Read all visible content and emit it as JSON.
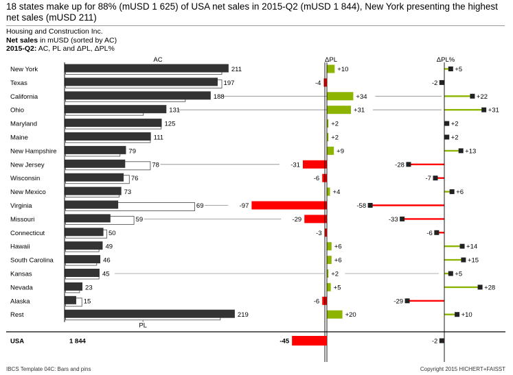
{
  "header": {
    "headline": "18 states make up for 88% (mUSD 1 625) of USA net sales in 2015-Q2 (mUSD 1 844), New York presenting the highest net sales (mUSD 211)",
    "company": "Housing and Construction Inc.",
    "measure_bold": "Net sales",
    "measure_rest": " in mUSD (sorted by AC)",
    "period_bold": "2015-Q2:",
    "period_rest": " AC, PL and ΔPL, ΔPL%"
  },
  "footer": {
    "left": "IBCS Template 04C: Bars and pins",
    "right": "Copyright 2015 HICHERT+FAISST"
  },
  "colors": {
    "actual": "#333333",
    "plan_outline": "#555555",
    "positive": "#8cb400",
    "negative": "#ff0000",
    "axis": "#000000",
    "marker": "#222222"
  },
  "chart_data": {
    "type": "bar",
    "title": "Net sales in mUSD (sorted by AC)",
    "column_headers": {
      "ac": "AC",
      "dpl": "ΔPL",
      "dpl_pct": "ΔPL%",
      "plan_legend": "PL"
    },
    "total": {
      "label": "USA",
      "ac": 1844,
      "ac_label": "1 844",
      "dpl": -45,
      "dpl_label": "-45",
      "dpl_pct": -2,
      "dpl_pct_label": "-2"
    },
    "rows": [
      {
        "category": "New York",
        "ac": 211,
        "pl": 201,
        "dpl": 10,
        "dpl_label": "+10",
        "dpl_pct": 5,
        "dpl_pct_label": "+5"
      },
      {
        "category": "Texas",
        "ac": 197,
        "pl": 201,
        "dpl": -4,
        "dpl_label": "-4",
        "dpl_pct": -2,
        "dpl_pct_label": "-2"
      },
      {
        "category": "California",
        "ac": 188,
        "pl": 154,
        "dpl": 34,
        "dpl_label": "+34",
        "dpl_pct": 22,
        "dpl_pct_label": "+22"
      },
      {
        "category": "Ohio",
        "ac": 131,
        "pl": 100,
        "dpl": 31,
        "dpl_label": "+31",
        "dpl_pct": 31,
        "dpl_pct_label": "+31"
      },
      {
        "category": "Maryland",
        "ac": 125,
        "pl": 123,
        "dpl": 2,
        "dpl_label": "+2",
        "dpl_pct": 2,
        "dpl_pct_label": "+2"
      },
      {
        "category": "Maine",
        "ac": 111,
        "pl": 109,
        "dpl": 2,
        "dpl_label": "+2",
        "dpl_pct": 2,
        "dpl_pct_label": "+2"
      },
      {
        "category": "New Hampshire",
        "ac": 79,
        "pl": 70,
        "dpl": 9,
        "dpl_label": "+9",
        "dpl_pct": 13,
        "dpl_pct_label": "+13"
      },
      {
        "category": "New Jersey",
        "ac": 78,
        "pl": 109,
        "dpl": -31,
        "dpl_label": "-31",
        "dpl_pct": -28,
        "dpl_pct_label": "-28"
      },
      {
        "category": "Wisconsin",
        "ac": 76,
        "pl": 82,
        "dpl": -6,
        "dpl_label": "-6",
        "dpl_pct": -7,
        "dpl_pct_label": "-7"
      },
      {
        "category": "New Mexico",
        "ac": 73,
        "pl": 69,
        "dpl": 4,
        "dpl_label": "+4",
        "dpl_pct": 6,
        "dpl_pct_label": "+6"
      },
      {
        "category": "Virginia",
        "ac": 69,
        "pl": 166,
        "dpl": -97,
        "dpl_label": "-97",
        "dpl_pct": -58,
        "dpl_pct_label": "-58"
      },
      {
        "category": "Missouri",
        "ac": 59,
        "pl": 88,
        "dpl": -29,
        "dpl_label": "-29",
        "dpl_pct": -33,
        "dpl_pct_label": "-33"
      },
      {
        "category": "Connecticut",
        "ac": 50,
        "pl": 53,
        "dpl": -3,
        "dpl_label": "-3",
        "dpl_pct": -6,
        "dpl_pct_label": "-6"
      },
      {
        "category": "Hawaii",
        "ac": 49,
        "pl": 43,
        "dpl": 6,
        "dpl_label": "+6",
        "dpl_pct": 14,
        "dpl_pct_label": "+14"
      },
      {
        "category": "South Carolina",
        "ac": 46,
        "pl": 40,
        "dpl": 6,
        "dpl_label": "+6",
        "dpl_pct": 15,
        "dpl_pct_label": "+15"
      },
      {
        "category": "Kansas",
        "ac": 45,
        "pl": 43,
        "dpl": 2,
        "dpl_label": "+2",
        "dpl_pct": 5,
        "dpl_pct_label": "+5"
      },
      {
        "category": "Nevada",
        "ac": 23,
        "pl": 18,
        "dpl": 5,
        "dpl_label": "+5",
        "dpl_pct": 28,
        "dpl_pct_label": "+28"
      },
      {
        "category": "Alaska",
        "ac": 15,
        "pl": 21,
        "dpl": -6,
        "dpl_label": "-6",
        "dpl_pct": -29,
        "dpl_pct_label": "-29"
      },
      {
        "category": "Rest",
        "ac": 219,
        "pl": 199,
        "dpl": 20,
        "dpl_label": "+20",
        "dpl_pct": 10,
        "dpl_pct_label": "+10"
      }
    ]
  }
}
